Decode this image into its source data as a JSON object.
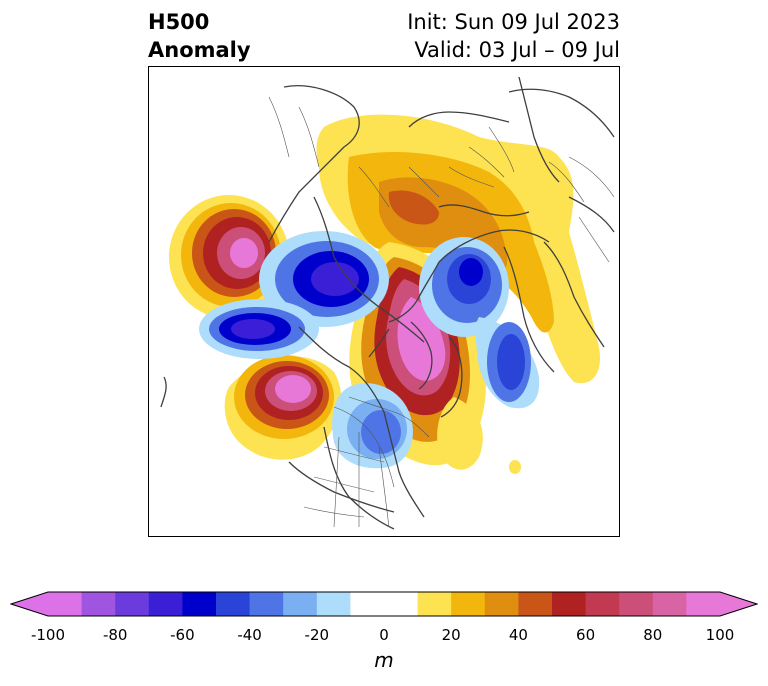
{
  "title": {
    "left_line1": "H500",
    "left_line2": "Anomaly",
    "right_line1": "Init: Sun 09 Jul 2023",
    "right_line2": "Valid: 03 Jul – 09 Jul"
  },
  "colorbar": {
    "unit": "m",
    "ticks": [
      "-100",
      "-80",
      "-60",
      "-40",
      "-20",
      "0",
      "20",
      "40",
      "60",
      "80",
      "100"
    ],
    "min": -100,
    "max": 100,
    "step": 10,
    "colors": [
      "#dd72e8",
      "#a055e0",
      "#6b3bde",
      "#3b1fd6",
      "#0000cc",
      "#2a44d8",
      "#4f74e6",
      "#7ab0f2",
      "#aedcfb",
      "#ffffff",
      "#ffffff",
      "#fde251",
      "#f3b60d",
      "#e08e0f",
      "#c95517",
      "#b02121",
      "#c23a52",
      "#cc4f7a",
      "#d864a6",
      "#e878d8"
    ],
    "under_color": "#dd72e8",
    "over_color": "#e878d8"
  },
  "map": {
    "projection": "polar-stereographic",
    "field": "500 hPa geopotential height anomaly",
    "palette_note": "blue = negative, yellow/red/pink = positive"
  }
}
